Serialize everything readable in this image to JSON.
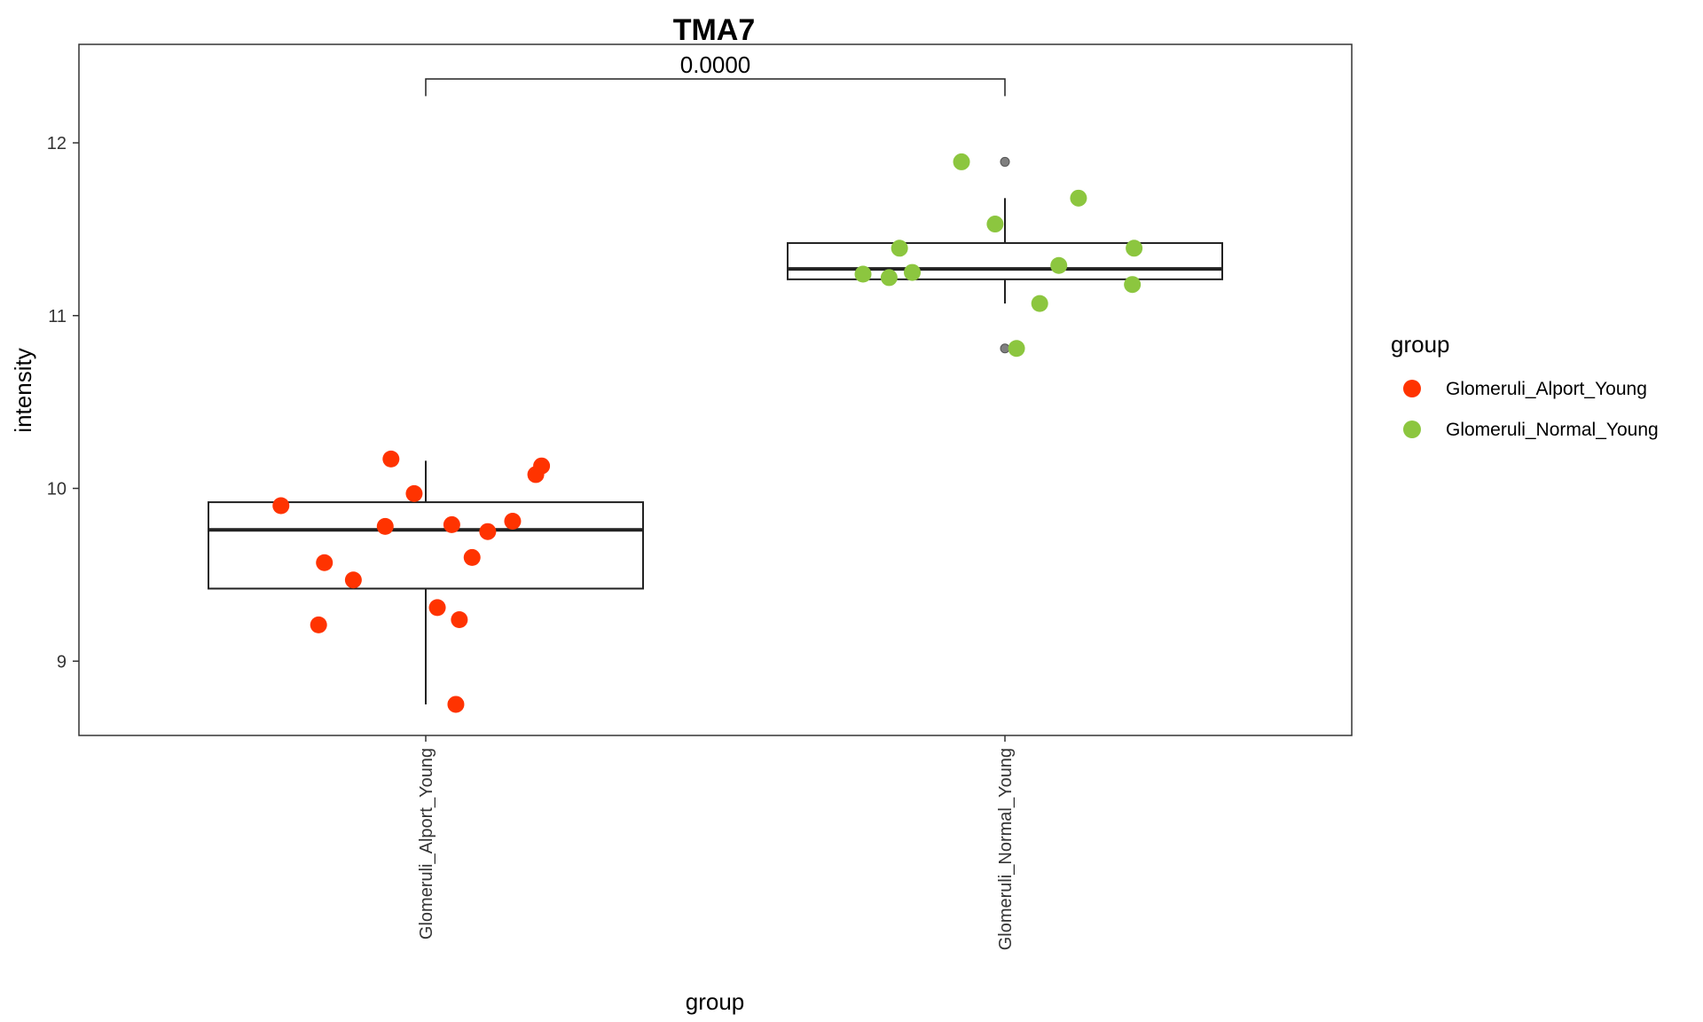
{
  "chart_data": {
    "type": "boxplot",
    "title": "TMA7",
    "xlabel": "group",
    "ylabel": "intensity",
    "ylim": [
      8.57,
      12.57
    ],
    "y_ticks": [
      9,
      10,
      11,
      12
    ],
    "grid": false,
    "categories": [
      "Glomeruli_Alport_Young",
      "Glomeruli_Normal_Young"
    ],
    "legend": {
      "title": "group",
      "placement": "right",
      "entries": [
        {
          "label": "Glomeruli_Alport_Young",
          "color": "#ff3300"
        },
        {
          "label": "Glomeruli_Normal_Young",
          "color": "#8cc63f"
        }
      ]
    },
    "annotation": {
      "label": "0.0000",
      "from": 0,
      "to": 1,
      "y": 12.37,
      "drop_to": 12.27
    },
    "boxes": [
      {
        "category": "Glomeruli_Alport_Young",
        "q1": 9.42,
        "median": 9.76,
        "q3": 9.92,
        "whisker_low": 8.75,
        "whisker_high": 10.16,
        "outliers": []
      },
      {
        "category": "Glomeruli_Normal_Young",
        "q1": 11.21,
        "median": 11.27,
        "q3": 11.42,
        "whisker_low": 11.07,
        "whisker_high": 11.68,
        "outliers": [
          11.89,
          10.81
        ]
      }
    ],
    "series": [
      {
        "name": "Glomeruli_Alport_Young",
        "color": "#ff3300",
        "points": [
          {
            "x": -0.25,
            "y": 9.9
          },
          {
            "x": -0.175,
            "y": 9.57
          },
          {
            "x": -0.185,
            "y": 9.21
          },
          {
            "x": -0.125,
            "y": 9.47
          },
          {
            "x": -0.07,
            "y": 9.78
          },
          {
            "x": -0.06,
            "y": 10.17
          },
          {
            "x": -0.02,
            "y": 9.97
          },
          {
            "x": 0.02,
            "y": 9.31
          },
          {
            "x": 0.045,
            "y": 9.79
          },
          {
            "x": 0.058,
            "y": 9.24
          },
          {
            "x": 0.052,
            "y": 8.75
          },
          {
            "x": 0.08,
            "y": 9.6
          },
          {
            "x": 0.107,
            "y": 9.75
          },
          {
            "x": 0.15,
            "y": 9.81
          },
          {
            "x": 0.19,
            "y": 10.08
          },
          {
            "x": 0.2,
            "y": 10.13
          }
        ]
      },
      {
        "name": "Glomeruli_Normal_Young",
        "color": "#8cc63f",
        "points": [
          {
            "x": 0.755,
            "y": 11.24
          },
          {
            "x": 0.8,
            "y": 11.22
          },
          {
            "x": 0.818,
            "y": 11.39
          },
          {
            "x": 0.84,
            "y": 11.25
          },
          {
            "x": 0.925,
            "y": 11.89
          },
          {
            "x": 0.983,
            "y": 11.53
          },
          {
            "x": 1.02,
            "y": 10.81
          },
          {
            "x": 1.06,
            "y": 11.07
          },
          {
            "x": 1.093,
            "y": 11.29
          },
          {
            "x": 1.127,
            "y": 11.68
          },
          {
            "x": 1.22,
            "y": 11.18
          },
          {
            "x": 1.223,
            "y": 11.39
          }
        ]
      }
    ]
  }
}
